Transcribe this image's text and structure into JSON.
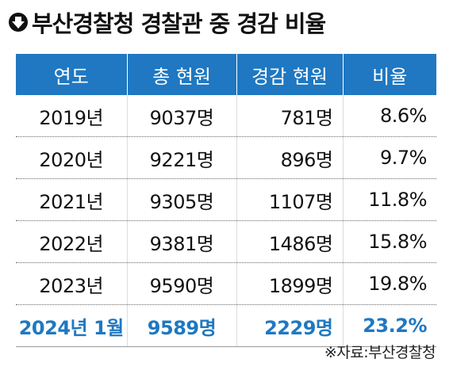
{
  "header": {
    "title": "부산경찰청 경찰관 중 경감 비율"
  },
  "table": {
    "columns": [
      "연도",
      "총 현원",
      "경감 현원",
      "비율"
    ],
    "rows": [
      [
        "2019년",
        "9037명",
        "781명",
        "8.6%"
      ],
      [
        "2020년",
        "9221명",
        "896명",
        "9.7%"
      ],
      [
        "2021년",
        "9305명",
        "1107명",
        "11.8%"
      ],
      [
        "2022년",
        "9381명",
        "1486명",
        "15.8%"
      ],
      [
        "2023년",
        "9590명",
        "1899명",
        "19.8%"
      ],
      [
        "2024년 1월",
        "9589명",
        "2229명",
        "23.2%"
      ]
    ]
  },
  "source": "※자료:부산경찰청"
}
